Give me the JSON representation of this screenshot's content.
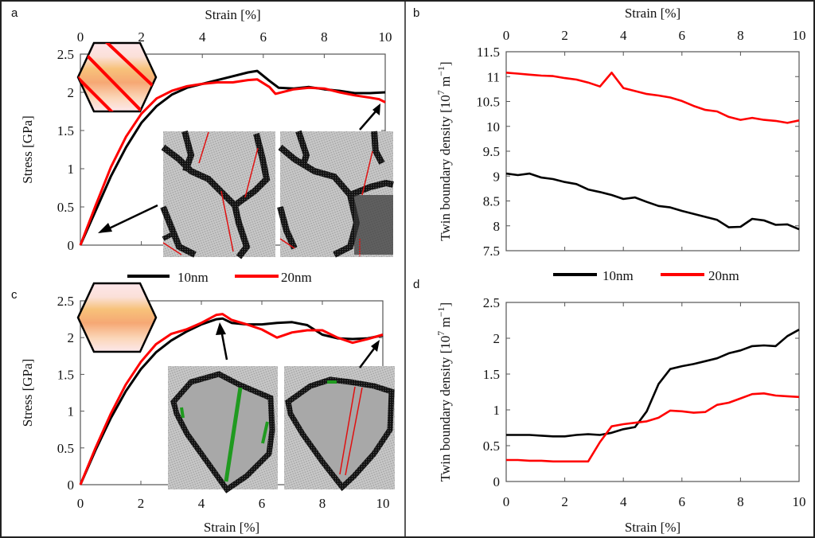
{
  "figure": {
    "legend": [
      {
        "label": "10nm",
        "color": "#000000"
      },
      {
        "label": "20nm",
        "color": "#ff0000"
      }
    ],
    "inset_twin_colors": {
      "twin_boundary": "#e01010",
      "stacking_fault": "#1f9a1f",
      "grain_boundary": "#000000",
      "grain_interior": "#bdbdbd"
    }
  },
  "chart_data": [
    {
      "panel": "a",
      "type": "line",
      "title": "",
      "xlabel": "Strain [%]",
      "xlabel_position": "top",
      "ylabel": "Stress [GPa]",
      "xlim": [
        0,
        10
      ],
      "ylim": [
        0,
        2.5
      ],
      "xticks": [
        "0",
        "2",
        "4",
        "6",
        "8",
        "10"
      ],
      "yticks": [
        "0",
        "0.5",
        "1",
        "1.5",
        "2",
        "2.5"
      ],
      "grid": false,
      "legend_position": "below",
      "inset_icon": "hexagon with inclined twin boundaries",
      "annotations": [
        "arrow to strain 0.5% pointing from inset at 0% strain",
        "arrow to strain 10% pointing from inset at 10% strain"
      ],
      "series": [
        {
          "name": "10nm",
          "color": "#000000",
          "x": [
            0,
            0.5,
            1,
            1.5,
            2,
            2.5,
            3,
            3.5,
            4,
            4.5,
            5,
            5.5,
            5.8,
            6.2,
            6.5,
            7,
            7.5,
            8,
            8.5,
            9,
            9.5,
            10
          ],
          "y": [
            0,
            0.45,
            0.9,
            1.28,
            1.6,
            1.82,
            1.97,
            2.06,
            2.11,
            2.16,
            2.21,
            2.26,
            2.28,
            2.15,
            2.06,
            2.05,
            2.07,
            2.04,
            2.02,
            1.99,
            1.99,
            2.0
          ]
        },
        {
          "name": "20nm",
          "color": "#ff0000",
          "x": [
            0,
            0.5,
            1,
            1.5,
            2,
            2.5,
            3,
            3.5,
            4,
            4.5,
            5,
            5.5,
            5.8,
            6.2,
            6.4,
            7,
            7.5,
            8,
            8.5,
            9,
            9.5,
            9.8,
            10
          ],
          "y": [
            0,
            0.52,
            1.02,
            1.42,
            1.72,
            1.92,
            2.02,
            2.08,
            2.11,
            2.13,
            2.13,
            2.16,
            2.17,
            2.07,
            1.98,
            2.04,
            2.06,
            2.05,
            2.0,
            1.96,
            1.93,
            1.91,
            1.87
          ]
        }
      ]
    },
    {
      "panel": "b",
      "type": "line",
      "title": "",
      "xlabel": "Strain [%]",
      "xlabel_position": "top",
      "ylabel": "Twin boundary density [10^7 m^-1]",
      "ylabel_base": "Twin boundary density [10",
      "ylabel_exp1": "7",
      "ylabel_mid": " m",
      "ylabel_exp2": "−1",
      "ylabel_end": "]",
      "xlim": [
        0,
        10
      ],
      "ylim": [
        7.5,
        11.5
      ],
      "xticks": [
        "0",
        "2",
        "4",
        "6",
        "8",
        "10"
      ],
      "yticks": [
        "7.5",
        "8",
        "8.5",
        "9",
        "9.5",
        "10",
        "10.5",
        "11",
        "11.5"
      ],
      "grid": false,
      "legend_position": "below",
      "series": [
        {
          "name": "10nm",
          "color": "#000000",
          "x": [
            0,
            0.4,
            0.8,
            1.2,
            1.6,
            2.0,
            2.4,
            2.8,
            3.2,
            3.6,
            4.0,
            4.4,
            4.8,
            5.2,
            5.6,
            6.0,
            6.4,
            6.8,
            7.2,
            7.6,
            8.0,
            8.4,
            8.8,
            9.2,
            9.6,
            10.0
          ],
          "y": [
            9.05,
            9.02,
            9.05,
            8.97,
            8.94,
            8.88,
            8.84,
            8.73,
            8.68,
            8.62,
            8.54,
            8.57,
            8.48,
            8.4,
            8.37,
            8.3,
            8.24,
            8.18,
            8.12,
            7.97,
            7.98,
            8.14,
            8.11,
            8.02,
            8.03,
            7.93
          ]
        },
        {
          "name": "20nm",
          "color": "#ff0000",
          "x": [
            0,
            0.4,
            0.8,
            1.2,
            1.6,
            2.0,
            2.4,
            2.8,
            3.2,
            3.6,
            4.0,
            4.4,
            4.8,
            5.2,
            5.6,
            6.0,
            6.4,
            6.8,
            7.2,
            7.6,
            8.0,
            8.4,
            8.8,
            9.2,
            9.6,
            10.0
          ],
          "y": [
            11.08,
            11.06,
            11.04,
            11.02,
            11.01,
            10.97,
            10.94,
            10.88,
            10.8,
            11.08,
            10.77,
            10.71,
            10.65,
            10.62,
            10.58,
            10.51,
            10.41,
            10.33,
            10.3,
            10.19,
            10.13,
            10.17,
            10.13,
            10.11,
            10.07,
            10.12
          ]
        }
      ]
    },
    {
      "panel": "c",
      "type": "line",
      "title": "",
      "xlabel": "Strain [%]",
      "xlabel_position": "bottom",
      "ylabel": "Stress [GPa]",
      "xlim": [
        0,
        10
      ],
      "ylim": [
        0,
        2.5
      ],
      "xticks": [
        "0",
        "2",
        "4",
        "6",
        "8",
        "10"
      ],
      "yticks": [
        "0",
        "0.5",
        "1",
        "1.5",
        "2",
        "2.5"
      ],
      "grid": false,
      "legend_position": "top",
      "inset_icon": "hexagon without twin boundaries",
      "annotations": [
        "arrow to peak stress near 4.6% strain",
        "arrow to strain 10%"
      ],
      "series": [
        {
          "name": "10nm",
          "color": "#000000",
          "x": [
            0,
            0.5,
            1,
            1.5,
            2,
            2.5,
            3,
            3.5,
            4,
            4.5,
            4.7,
            5,
            5.5,
            6,
            6.5,
            7,
            7.5,
            8,
            8.5,
            9,
            9.5,
            10
          ],
          "y": [
            0,
            0.47,
            0.9,
            1.27,
            1.57,
            1.8,
            1.96,
            2.08,
            2.18,
            2.25,
            2.26,
            2.2,
            2.18,
            2.18,
            2.2,
            2.21,
            2.17,
            2.04,
            1.99,
            1.98,
            1.99,
            2.03
          ]
        },
        {
          "name": "20nm",
          "color": "#ff0000",
          "x": [
            0,
            0.5,
            1,
            1.5,
            2,
            2.5,
            3,
            3.5,
            4,
            4.5,
            4.7,
            5,
            5.5,
            6,
            6.5,
            7,
            7.5,
            8,
            8.5,
            9,
            9.5,
            10
          ],
          "y": [
            0,
            0.5,
            0.96,
            1.36,
            1.67,
            1.91,
            2.05,
            2.11,
            2.2,
            2.31,
            2.32,
            2.24,
            2.18,
            2.11,
            2.0,
            2.07,
            2.1,
            2.1,
            2.0,
            1.93,
            1.98,
            2.04
          ]
        }
      ]
    },
    {
      "panel": "d",
      "type": "line",
      "title": "",
      "xlabel": "Strain [%]",
      "xlabel_position": "bottom",
      "ylabel": "Twin boundary density [10^7 m^-1]",
      "ylabel_base": "Twin boundary density [10",
      "ylabel_exp1": "7",
      "ylabel_mid": " m",
      "ylabel_exp2": "−1",
      "ylabel_end": "]",
      "xlim": [
        0,
        10
      ],
      "ylim": [
        0,
        2.5
      ],
      "xticks": [
        "0",
        "2",
        "4",
        "6",
        "8",
        "10"
      ],
      "yticks": [
        "0",
        "0.5",
        "1",
        "1.5",
        "2",
        "2.5"
      ],
      "grid": false,
      "legend_position": "top",
      "series": [
        {
          "name": "10nm",
          "color": "#000000",
          "x": [
            0,
            0.4,
            0.8,
            1.2,
            1.6,
            2.0,
            2.4,
            2.8,
            3.2,
            3.6,
            4.0,
            4.4,
            4.8,
            5.2,
            5.6,
            6.0,
            6.4,
            6.8,
            7.2,
            7.6,
            8.0,
            8.4,
            8.8,
            9.2,
            9.6,
            10.0
          ],
          "y": [
            0.65,
            0.65,
            0.65,
            0.64,
            0.63,
            0.63,
            0.65,
            0.66,
            0.65,
            0.68,
            0.73,
            0.76,
            0.98,
            1.36,
            1.57,
            1.61,
            1.64,
            1.68,
            1.72,
            1.79,
            1.83,
            1.89,
            1.9,
            1.89,
            2.03,
            2.12
          ]
        },
        {
          "name": "20nm",
          "color": "#ff0000",
          "x": [
            0,
            0.4,
            0.8,
            1.2,
            1.6,
            2.0,
            2.4,
            2.8,
            3.2,
            3.6,
            4.0,
            4.4,
            4.8,
            5.2,
            5.6,
            6.0,
            6.4,
            6.8,
            7.2,
            7.6,
            8.0,
            8.4,
            8.8,
            9.2,
            9.6,
            10.0
          ],
          "y": [
            0.3,
            0.3,
            0.29,
            0.29,
            0.28,
            0.28,
            0.28,
            0.28,
            0.55,
            0.77,
            0.8,
            0.82,
            0.84,
            0.89,
            0.99,
            0.98,
            0.96,
            0.97,
            1.07,
            1.1,
            1.16,
            1.22,
            1.23,
            1.2,
            1.19,
            1.18
          ]
        }
      ]
    }
  ]
}
